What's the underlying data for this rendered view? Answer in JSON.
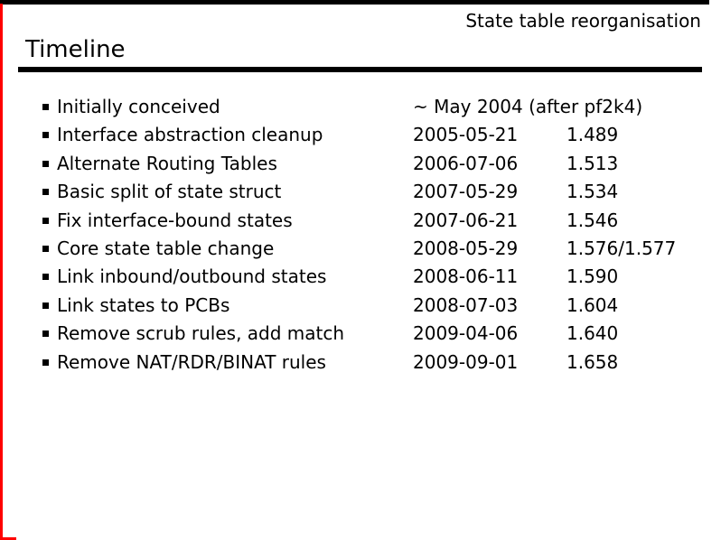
{
  "slide": {
    "header": "State table reorganisation",
    "title": "Timeline",
    "colors": {
      "accent_red": "#ff0000",
      "text": "#000000",
      "background": "#ffffff"
    },
    "timeline": {
      "rows": [
        {
          "event": "Initially conceived",
          "date": "~ May 2004 (after pf2k4)",
          "version": ""
        },
        {
          "event": "Interface abstraction cleanup",
          "date": "2005-05-21",
          "version": "1.489"
        },
        {
          "event": "Alternate Routing Tables",
          "date": "2006-07-06",
          "version": "1.513"
        },
        {
          "event": "Basic split of state struct",
          "date": "2007-05-29",
          "version": "1.534"
        },
        {
          "event": "Fix interface-bound states",
          "date": "2007-06-21",
          "version": "1.546"
        },
        {
          "event": "Core state table change",
          "date": "2008-05-29",
          "version": "1.576/1.577"
        },
        {
          "event": "Link inbound/outbound states",
          "date": "2008-06-11",
          "version": "1.590"
        },
        {
          "event": "Link states to PCBs",
          "date": "2008-07-03",
          "version": "1.604"
        },
        {
          "event": "Remove scrub rules, add match",
          "date": "2009-04-06",
          "version": "1.640"
        },
        {
          "event": "Remove NAT/RDR/BINAT rules",
          "date": "2009-09-01",
          "version": "1.658"
        }
      ]
    }
  }
}
